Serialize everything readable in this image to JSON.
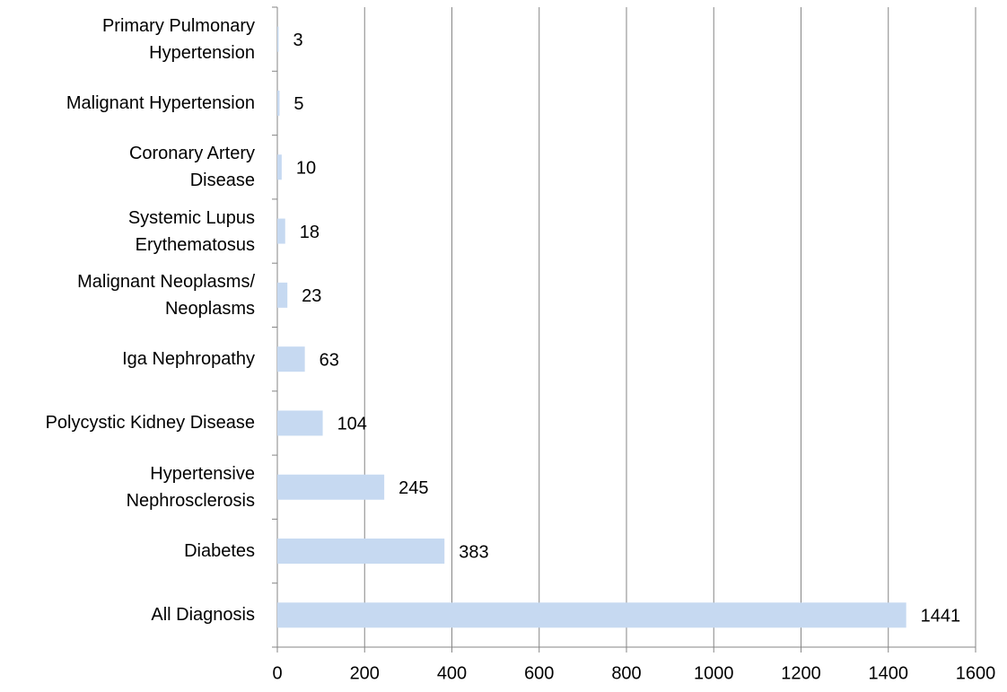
{
  "chart_data": {
    "type": "barh",
    "categories": [
      "All Diagnosis",
      "Diabetes",
      "Hypertensive\nNephrosclerosis",
      "Polycystic Kidney Disease",
      "Iga Nephropathy",
      "Malignant Neoplasms/\nNeoplasms",
      "Systemic Lupus\nErythematosus",
      "Coronary Artery\nDisease",
      "Malignant Hypertension",
      "Primary Pulmonary\nHypertension"
    ],
    "values": [
      1441,
      383,
      245,
      104,
      63,
      23,
      18,
      10,
      5,
      3
    ],
    "color": "#c6d9f1",
    "xlim": [
      0,
      1600
    ],
    "xticks": [
      0,
      200,
      400,
      600,
      800,
      1000,
      1200,
      1400,
      1600
    ],
    "grid": true
  }
}
